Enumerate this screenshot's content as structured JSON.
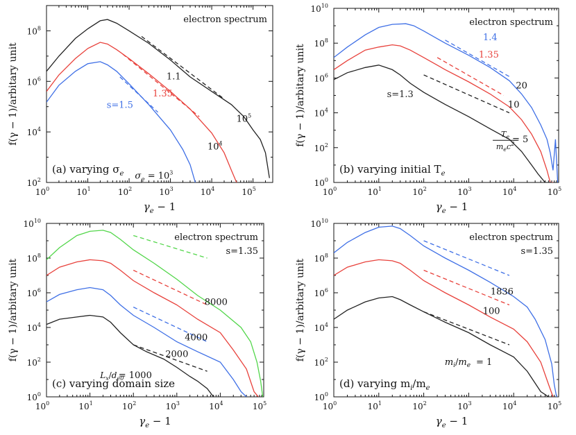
{
  "chart_data": [
    {
      "type": "line",
      "panel": "a",
      "scale": "log-log",
      "xlim": [
        1,
        300000
      ],
      "ylim": [
        100,
        1000000000
      ],
      "title": "electron spectrum",
      "panel_label": "(a) varying σ",
      "panel_label_sub": "e",
      "xlabel": "γ − 1",
      "ylabel": "f(γ − 1)/arbitary unit",
      "series": [
        {
          "color": "#222222",
          "x": [
            1,
            2,
            5,
            10,
            20,
            30,
            50,
            100,
            300,
            1000,
            3000,
            10000,
            30000,
            60000,
            100000,
            150000,
            200000,
            250000
          ],
          "y": [
            2500000.0,
            10000000.0,
            50000000.0,
            120000000.0,
            250000000.0,
            280000000.0,
            200000000.0,
            100000000.0,
            32000000.0,
            7000000.0,
            1500000.0,
            400000.0,
            120000.0,
            40000.0,
            12000.0,
            5000.0,
            1500.0,
            150
          ]
        },
        {
          "color": "#e8413b",
          "x": [
            1,
            2,
            5,
            10,
            20,
            30,
            50,
            100,
            300,
            1000,
            3000,
            10000,
            20000,
            30000,
            40000
          ],
          "y": [
            400000.0,
            1800000.0,
            8000000.0,
            20000000.0,
            35000000.0,
            30000000.0,
            18000000.0,
            8000000.0,
            2000000.0,
            400000.0,
            80000.0,
            9000.0,
            1500.0,
            300,
            100
          ]
        },
        {
          "color": "#3e6fe6",
          "x": [
            1,
            2,
            5,
            10,
            20,
            30,
            50,
            100,
            300,
            1000,
            2000,
            3000,
            4000
          ],
          "y": [
            150000.0,
            700000.0,
            2500000.0,
            5000000.0,
            6000000.0,
            4500000.0,
            2500000.0,
            800000.0,
            120000.0,
            12000.0,
            2000.0,
            500,
            100
          ]
        }
      ],
      "guides": [
        {
          "color": "#222222",
          "x": [
            200,
            20000
          ],
          "y": [
            60000000.0,
            200000.0
          ]
        },
        {
          "color": "#e8413b",
          "x": [
            70,
            5000
          ],
          "y": [
            12000000.0,
            40000.0
          ]
        },
        {
          "color": "#3e6fe6",
          "x": [
            60,
            500
          ],
          "y": [
            1500000.0,
            60000.0
          ]
        }
      ],
      "annotations": [
        {
          "text": "1.1",
          "color": "#222222",
          "x": 1200,
          "y": 1200000.0
        },
        {
          "text": "1.35",
          "color": "#e8413b",
          "x": 650,
          "y": 250000.0
        },
        {
          "text": "s=1.5",
          "color": "#3e6fe6",
          "x": 60,
          "y": 90000.0
        }
      ],
      "curve_labels": [
        {
          "base": "10",
          "exp": "5",
          "color": "#222222",
          "x": 60000,
          "y": 25000.0
        },
        {
          "base": "10",
          "exp": "4",
          "color": "#222222",
          "x": 12000,
          "y": 2000.0
        },
        {
          "base": "σ",
          "sub": "e",
          "tail": " = 10",
          "exp": "3",
          "color": "#222222",
          "x": 400,
          "y": 140
        }
      ]
    },
    {
      "type": "line",
      "panel": "b",
      "scale": "log-log",
      "xlim": [
        1,
        100000
      ],
      "ylim": [
        1,
        10000000000
      ],
      "title": "electron spectrum",
      "panel_label": "(b) varying initial T",
      "panel_label_sub": "e",
      "xlabel": "γ − 1",
      "ylabel": "f(γ − 1)/arbitary unit",
      "series": [
        {
          "color": "#3e6fe6",
          "x": [
            1,
            2,
            5,
            10,
            20,
            40,
            60,
            100,
            300,
            1000,
            3000,
            8000,
            15000,
            25000,
            40000,
            55000,
            65000,
            75000,
            85000,
            95000
          ],
          "y": [
            15000000.0,
            60000000.0,
            300000000.0,
            800000000.0,
            1200000000.0,
            1300000000.0,
            1000000000.0,
            500000000.0,
            100000000.0,
            20000000.0,
            4000000.0,
            700000.0,
            120000.0,
            20000.0,
            2000.0,
            300,
            50,
            5,
            300,
            1
          ]
        },
        {
          "color": "#e8413b",
          "x": [
            1,
            2,
            5,
            10,
            20,
            30,
            50,
            100,
            300,
            1000,
            3000,
            8000,
            15000,
            25000,
            40000,
            55000,
            65000,
            75000
          ],
          "y": [
            3000000.0,
            10000000.0,
            40000000.0,
            60000000.0,
            80000000.0,
            70000000.0,
            40000000.0,
            15000000.0,
            3000000.0,
            600000.0,
            120000.0,
            22000.0,
            4000.0,
            600,
            60,
            5,
            1,
            1
          ]
        },
        {
          "color": "#222222",
          "x": [
            1,
            2,
            5,
            10,
            20,
            30,
            50,
            100,
            300,
            1000,
            3000,
            8000,
            15000,
            25000,
            35000,
            50000,
            60000,
            70000
          ],
          "y": [
            800000.0,
            2000000.0,
            4000000.0,
            5500000.0,
            3000000.0,
            1500000.0,
            500000.0,
            150000.0,
            30000.0,
            6000.0,
            1200.0,
            300,
            60,
            10,
            3,
            1,
            1,
            1
          ]
        }
      ],
      "guides": [
        {
          "color": "#3e6fe6",
          "x": [
            300,
            8000
          ],
          "y": [
            150000000.0,
            1200000.0
          ]
        },
        {
          "color": "#e8413b",
          "x": [
            200,
            6000
          ],
          "y": [
            15000000.0,
            100000.0
          ]
        },
        {
          "color": "#222222",
          "x": [
            100,
            8000
          ],
          "y": [
            1500000.0,
            10000.0
          ]
        }
      ],
      "annotations": [
        {
          "text": "1.4",
          "color": "#3e6fe6",
          "x": 3000,
          "y": 150000000.0
        },
        {
          "text": "1.35",
          "color": "#e8413b",
          "x": 2800,
          "y": 15000000.0
        },
        {
          "text": "s=1.3",
          "color": "#222222",
          "x": 30,
          "y": 80000.0
        }
      ],
      "curve_labels": [
        {
          "text": "20",
          "color": "#222222",
          "x": 15000,
          "y": 250000.0
        },
        {
          "text": "10",
          "color": "#222222",
          "x": 10000,
          "y": 20000.0
        },
        {
          "text": "= 5",
          "color": "#222222",
          "x": 14000,
          "y": 200
        }
      ],
      "te_fraction": {
        "num": "T",
        "num_sub": "e",
        "den": "m",
        "den_sub": "e",
        "den_c": "c",
        "den_exp": "2"
      }
    },
    {
      "type": "line",
      "panel": "c",
      "scale": "log-log",
      "xlim": [
        1,
        100000
      ],
      "ylim": [
        1,
        10000000000
      ],
      "title": "electron spectrum",
      "title2": "s=1.35",
      "panel_label": "(c) varying domain size",
      "xlabel": "γ − 1",
      "ylabel": "f(γ − 1)/arbitary unit",
      "series": [
        {
          "color": "#52d64a",
          "x": [
            1,
            2,
            5,
            10,
            20,
            30,
            50,
            100,
            300,
            1000,
            3000,
            10000,
            30000,
            50000,
            70000,
            85000,
            95000
          ],
          "y": [
            80000000.0,
            400000000.0,
            2000000000.0,
            3500000000.0,
            4000000000.0,
            3000000000.0,
            1200000000.0,
            300000000.0,
            50000000.0,
            6000000.0,
            700000.0,
            100000.0,
            10000.0,
            1500.0,
            100,
            8,
            1
          ]
        },
        {
          "color": "#e8413b",
          "x": [
            1,
            2,
            5,
            10,
            20,
            30,
            50,
            100,
            300,
            1000,
            3000,
            10000,
            20000,
            40000,
            60000,
            75000
          ],
          "y": [
            10000000.0,
            30000000.0,
            60000000.0,
            80000000.0,
            70000000.0,
            50000000.0,
            20000000.0,
            5000000.0,
            1000000.0,
            200000.0,
            30000.0,
            5000.0,
            500,
            40,
            2,
            1
          ]
        },
        {
          "color": "#3e6fe6",
          "x": [
            1,
            2,
            5,
            10,
            20,
            30,
            50,
            100,
            300,
            1000,
            3000,
            10000,
            20000,
            30000,
            40000
          ],
          "y": [
            300000.0,
            800000.0,
            1500000.0,
            2000000.0,
            1500000.0,
            700000.0,
            200000.0,
            50000.0,
            10000.0,
            1500.0,
            400,
            100,
            10,
            2,
            1
          ]
        },
        {
          "color": "#222222",
          "x": [
            1,
            2,
            5,
            10,
            20,
            30,
            50,
            100,
            200,
            500,
            1000,
            2000,
            3000,
            5000,
            7000
          ],
          "y": [
            15000.0,
            30000.0,
            40000.0,
            50000.0,
            40000.0,
            20000.0,
            5000.0,
            1000.0,
            400,
            150,
            50,
            15,
            8,
            3,
            1
          ]
        }
      ],
      "guides": [
        {
          "color": "#52d64a",
          "x": [
            100,
            5000
          ],
          "y": [
            2000000000.0,
            100000000.0
          ]
        },
        {
          "color": "#e8413b",
          "x": [
            100,
            5000
          ],
          "y": [
            20000000.0,
            200000.0
          ]
        },
        {
          "color": "#3e6fe6",
          "x": [
            100,
            5000
          ],
          "y": [
            150000.0,
            1500.0
          ]
        },
        {
          "color": "#222222",
          "x": [
            100,
            5000
          ],
          "y": [
            1000.0,
            30
          ]
        }
      ],
      "annotations": [],
      "curve_labels": [
        {
          "text": "8000",
          "color": "#222222",
          "x": 8000,
          "y": 200000.0
        },
        {
          "text": "4000",
          "color": "#222222",
          "x": 2800,
          "y": 1800.0
        },
        {
          "text": "2000",
          "color": "#222222",
          "x": 1000,
          "y": 200
        },
        {
          "text": "= 1000",
          "color": "#222222",
          "x": 110,
          "y": 12
        }
      ],
      "ld_label": {
        "L": "L",
        "L_sub": "x",
        "d": "d",
        "d_sub": "e0"
      }
    },
    {
      "type": "line",
      "panel": "d",
      "scale": "log-log",
      "xlim": [
        1,
        100000
      ],
      "ylim": [
        1,
        10000000000
      ],
      "title": "electron spectrum",
      "title2": "s=1.35",
      "panel_label": "(d) varying m",
      "panel_label_sub": "i",
      "panel_label_mid": "/m",
      "panel_label_sub2": "e",
      "xlabel": "γ − 1",
      "ylabel": "f(γ − 1)/arbitary unit",
      "series": [
        {
          "color": "#3e6fe6",
          "x": [
            1,
            2,
            5,
            10,
            20,
            30,
            50,
            100,
            300,
            1000,
            3000,
            10000,
            20000,
            30000,
            50000,
            70000,
            80000,
            90000
          ],
          "y": [
            200000000.0,
            800000000.0,
            3000000000.0,
            6000000000.0,
            7000000000.0,
            5000000000.0,
            2000000000.0,
            500000000.0,
            100000000.0,
            20000000.0,
            4000000.0,
            600000.0,
            150000.0,
            30000.0,
            2000.0,
            80,
            5,
            1
          ]
        },
        {
          "color": "#e8413b",
          "x": [
            1,
            2,
            5,
            10,
            20,
            30,
            50,
            100,
            300,
            1000,
            3000,
            10000,
            20000,
            40000,
            60000,
            75000
          ],
          "y": [
            10000000.0,
            30000000.0,
            60000000.0,
            80000000.0,
            70000000.0,
            50000000.0,
            20000000.0,
            5000000.0,
            1000000.0,
            200000.0,
            40000.0,
            8000.0,
            1500.0,
            100,
            5,
            1
          ]
        },
        {
          "color": "#222222",
          "x": [
            1,
            2,
            5,
            10,
            20,
            30,
            50,
            100,
            300,
            1000,
            3000,
            10000,
            20000,
            40000,
            60000
          ],
          "y": [
            30000.0,
            100000.0,
            300000.0,
            500000.0,
            600000.0,
            400000.0,
            200000.0,
            80000.0,
            20000.0,
            5000.0,
            1000.0,
            200,
            30,
            2,
            1
          ]
        }
      ],
      "guides": [
        {
          "color": "#3e6fe6",
          "x": [
            100,
            8000
          ],
          "y": [
            1000000000.0,
            10000000.0
          ]
        },
        {
          "color": "#e8413b",
          "x": [
            100,
            8000
          ],
          "y": [
            20000000.0,
            200000.0
          ]
        },
        {
          "color": "#222222",
          "x": [
            100,
            8000
          ],
          "y": [
            80000.0,
            1000.0
          ]
        }
      ],
      "annotations": [],
      "curve_labels": [
        {
          "text": "1836",
          "color": "#222222",
          "x": 5500,
          "y": 800000.0
        },
        {
          "text": "100",
          "color": "#222222",
          "x": 3200,
          "y": 60000.0
        },
        {
          "text": "= 1",
          "color": "#222222",
          "x": 2200,
          "y": 70
        }
      ],
      "m_label": {
        "mi": "m",
        "mi_sub": "i",
        "me": "m",
        "me_sub": "e"
      }
    }
  ]
}
